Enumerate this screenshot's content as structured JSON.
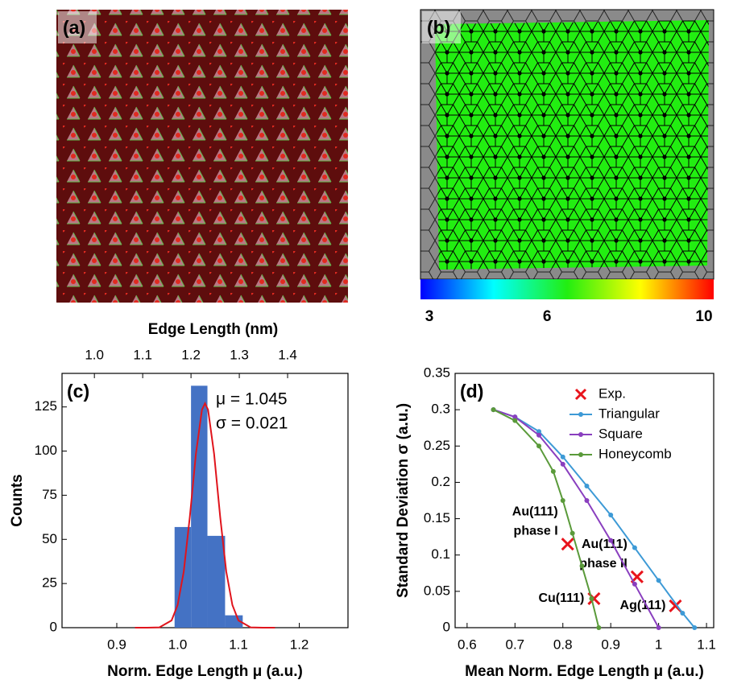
{
  "panels": {
    "a": {
      "label": "(a)"
    },
    "b": {
      "label": "(b)",
      "colorbar": {
        "clim": [
          3,
          10
        ],
        "ticks": [
          3,
          6,
          10
        ]
      }
    }
  },
  "chart_data": [
    {
      "type": "histogram",
      "label": "(c)",
      "xlabel": "Norm. Edge Length μ (a.u.)",
      "ylabel": "Counts",
      "x2label": "Edge Length (nm)",
      "bins": [
        0.995,
        1.022,
        1.049,
        1.078,
        1.107
      ],
      "counts": [
        57,
        137,
        52,
        7
      ],
      "color": "#4472c4",
      "xlim": [
        0.81,
        1.28
      ],
      "xticks": [
        0.9,
        {
          "value": 1,
          "label": "1.0"
        },
        1.1,
        1.2
      ],
      "ylim": [
        0,
        144
      ],
      "yticks": [
        0,
        25,
        50,
        75,
        100,
        125
      ],
      "x2lim": [
        0.933,
        1.525
      ],
      "x2ticks": [
        {
          "value": 1,
          "label": "1.0"
        },
        1.1,
        1.2,
        1.3,
        1.4
      ],
      "fit": {
        "color": "#e0141c",
        "x": [
          0.93,
          0.95,
          0.97,
          0.99,
          1.0,
          1.01,
          1.02,
          1.03,
          1.04,
          1.045,
          1.05,
          1.06,
          1.07,
          1.08,
          1.09,
          1.1,
          1.12,
          1.14,
          1.16
        ],
        "y": [
          0,
          0,
          0.2,
          4.1,
          12.8,
          31.7,
          62.5,
          98.4,
          123.4,
          127,
          123.4,
          98.4,
          62.5,
          31.7,
          12.8,
          4.1,
          0.2,
          0,
          0
        ]
      },
      "annotations": [
        "μ = 1.045",
        "σ = 0.021"
      ]
    },
    {
      "type": "line",
      "label": "(d)",
      "xlabel": "Mean Norm. Edge Length μ (a.u.)",
      "ylabel": "Standard Deviation σ (a.u.)",
      "xlim": [
        0.575,
        1.115
      ],
      "xticks": [
        0.6,
        0.7,
        0.8,
        0.9,
        1,
        1.1
      ],
      "ylim": [
        0,
        0.35
      ],
      "yticks": [
        0,
        0.05,
        0.1,
        0.15,
        0.2,
        0.25,
        0.3,
        0.35
      ],
      "legend": "top-right",
      "series": [
        {
          "name": "Exp.",
          "color": "#e8141c",
          "marker": "x",
          "x": [
            0.81,
            0.865,
            0.955,
            1.035
          ],
          "y": [
            0.115,
            0.04,
            0.07,
            0.03
          ],
          "point_labels": [
            [
              "Au(111)",
              "phase I"
            ],
            [
              "Cu(111)"
            ],
            [
              "Au(111)",
              "phase II"
            ],
            [
              "Ag(111)"
            ]
          ]
        },
        {
          "name": "Triangular",
          "color": "#3d9ad6",
          "marker": "dot",
          "x": [
            0.655,
            0.7,
            0.75,
            0.8,
            0.85,
            0.9,
            0.95,
            1.0,
            1.05,
            1.075
          ],
          "y": [
            0.3,
            0.29,
            0.27,
            0.235,
            0.195,
            0.155,
            0.11,
            0.065,
            0.02,
            0
          ]
        },
        {
          "name": "Square",
          "color": "#8a3fbf",
          "marker": "dot",
          "x": [
            0.655,
            0.7,
            0.75,
            0.8,
            0.85,
            0.9,
            0.95,
            1.0
          ],
          "y": [
            0.3,
            0.29,
            0.265,
            0.225,
            0.175,
            0.12,
            0.06,
            0
          ]
        },
        {
          "name": "Honeycomb",
          "color": "#5a9a3a",
          "marker": "dot",
          "x": [
            0.655,
            0.7,
            0.75,
            0.78,
            0.8,
            0.82,
            0.84,
            0.86,
            0.875
          ],
          "y": [
            0.3,
            0.285,
            0.25,
            0.215,
            0.175,
            0.13,
            0.085,
            0.04,
            0
          ]
        }
      ]
    }
  ]
}
